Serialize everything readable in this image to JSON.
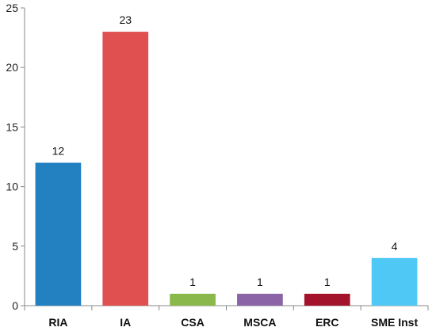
{
  "chart_data": {
    "type": "bar",
    "title": "",
    "xlabel": "",
    "ylabel": "",
    "categories": [
      "RIA",
      "IA",
      "CSA",
      "MSCA",
      "ERC",
      "SME Inst"
    ],
    "values": [
      12,
      23,
      1,
      1,
      1,
      4
    ],
    "data_labels": [
      "12",
      "23",
      "1",
      "1",
      "1",
      "4"
    ],
    "colors": [
      "#2381c2",
      "#e05050",
      "#8ab84a",
      "#8b64a8",
      "#a3132b",
      "#4fc8f5"
    ],
    "ylim": [
      0,
      25
    ],
    "yticks": [
      0,
      5,
      10,
      15,
      20,
      25
    ],
    "grid": false,
    "legend": "none",
    "axis_color": "#888888"
  }
}
